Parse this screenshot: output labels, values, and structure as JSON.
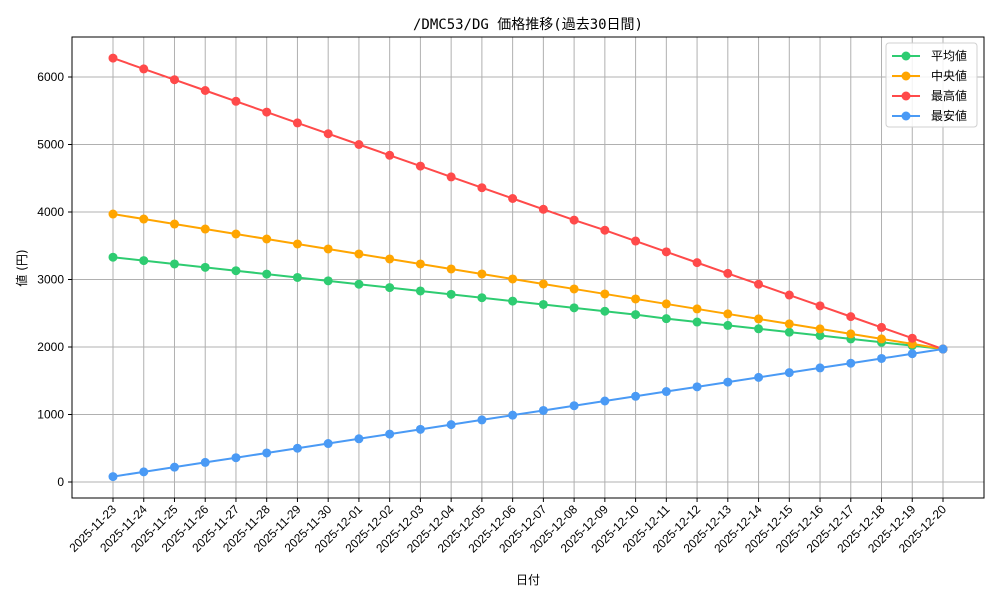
{
  "chart_data": {
    "type": "line",
    "title": "/DMC53/DG 価格推移(過去30日間)",
    "xlabel": "日付",
    "ylabel": "値 (円)",
    "ylim": [
      -230,
      6600
    ],
    "yticks": [
      0,
      1000,
      2000,
      3000,
      4000,
      5000,
      6000
    ],
    "grid": true,
    "legend_position": "upper right",
    "x": [
      "2025-11-23",
      "2025-11-24",
      "2025-11-25",
      "2025-11-26",
      "2025-11-27",
      "2025-11-28",
      "2025-11-29",
      "2025-11-30",
      "2025-12-01",
      "2025-12-02",
      "2025-12-03",
      "2025-12-04",
      "2025-12-05",
      "2025-12-06",
      "2025-12-07",
      "2025-12-08",
      "2025-12-09",
      "2025-12-10",
      "2025-12-11",
      "2025-12-12",
      "2025-12-13",
      "2025-12-14",
      "2025-12-15",
      "2025-12-16",
      "2025-12-17",
      "2025-12-18",
      "2025-12-19",
      "2025-12-20"
    ],
    "series": [
      {
        "name": "平均値",
        "color": "#2ecc71",
        "values": [
          3330,
          3280,
          3230,
          3180,
          3130,
          3080,
          3030,
          2980,
          2930,
          2880,
          2830,
          2780,
          2730,
          2680,
          2630,
          2580,
          2530,
          2480,
          2420,
          2370,
          2320,
          2270,
          2220,
          2170,
          2120,
          2070,
          2020,
          1970
        ]
      },
      {
        "name": "中央値",
        "color": "#ffa500",
        "values": [
          3970,
          3896,
          3822,
          3748,
          3674,
          3600,
          3526,
          3452,
          3378,
          3304,
          3230,
          3156,
          3082,
          3008,
          2934,
          2860,
          2786,
          2712,
          2638,
          2564,
          2490,
          2416,
          2342,
          2268,
          2194,
          2120,
          2046,
          1970
        ]
      },
      {
        "name": "最高値",
        "color": "#ff4a4a",
        "values": [
          6280,
          6120,
          5960,
          5800,
          5640,
          5480,
          5320,
          5160,
          5000,
          4840,
          4680,
          4520,
          4360,
          4200,
          4040,
          3880,
          3730,
          3570,
          3410,
          3250,
          3090,
          2930,
          2770,
          2610,
          2450,
          2290,
          2130,
          1970
        ]
      },
      {
        "name": "最安値",
        "color": "#4a9af5",
        "values": [
          80,
          150,
          220,
          290,
          360,
          430,
          500,
          570,
          640,
          710,
          780,
          850,
          920,
          990,
          1060,
          1130,
          1200,
          1270,
          1340,
          1410,
          1480,
          1550,
          1620,
          1690,
          1760,
          1830,
          1900,
          1970
        ]
      }
    ]
  }
}
